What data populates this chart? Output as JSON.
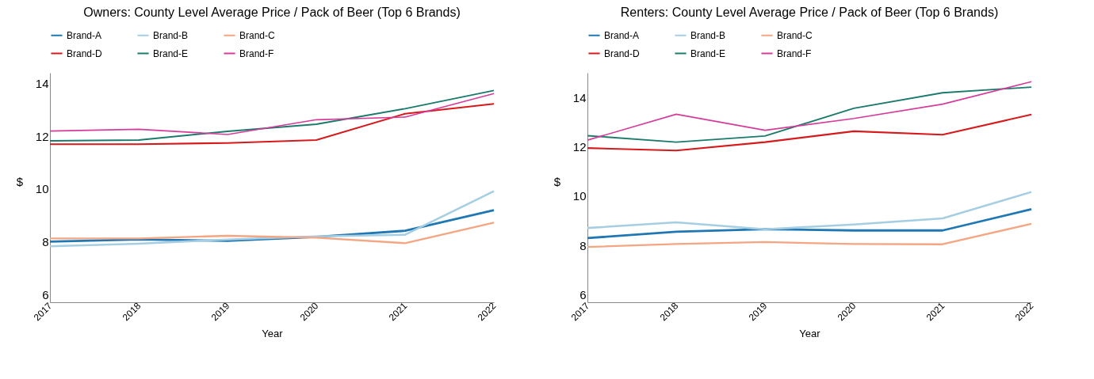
{
  "chart_data": [
    {
      "type": "line",
      "title": "Owners: County Level Average Price / Pack of Beer (Top 6 Brands)",
      "xlabel": "Year",
      "ylabel": "$",
      "categories": [
        "2017",
        "2018",
        "2019",
        "2020",
        "2021",
        "2022"
      ],
      "ylim": [
        5.7,
        14.4
      ],
      "yticks": [
        6,
        8,
        10,
        12,
        14
      ],
      "grid": false,
      "legend": "top left",
      "series": [
        {
          "name": "Brand-A",
          "color": "#1f78b4",
          "values": [
            8.0,
            8.08,
            8.03,
            8.18,
            8.41,
            9.19
          ]
        },
        {
          "name": "Brand-B",
          "color": "#a6cee3",
          "values": [
            7.82,
            7.92,
            8.08,
            8.2,
            8.26,
            9.91
          ]
        },
        {
          "name": "Brand-C",
          "color": "#f4a582",
          "values": [
            8.12,
            8.12,
            8.22,
            8.15,
            7.94,
            8.72
          ]
        },
        {
          "name": "Brand-D",
          "color": "#d7191c",
          "values": [
            11.69,
            11.69,
            11.74,
            11.85,
            12.85,
            13.22
          ]
        },
        {
          "name": "Brand-E",
          "color": "#1b7a6b",
          "values": [
            11.82,
            11.85,
            12.18,
            12.45,
            13.04,
            13.73
          ]
        },
        {
          "name": "Brand-F",
          "color": "#d63b9a",
          "values": [
            12.19,
            12.26,
            12.06,
            12.62,
            12.72,
            13.61
          ]
        }
      ]
    },
    {
      "type": "line",
      "title": "Renters: County Level Average Price / Pack of Beer (Top 6 Brands)",
      "xlabel": "Year",
      "ylabel": "$",
      "categories": [
        "2017",
        "2018",
        "2019",
        "2020",
        "2021",
        "2022"
      ],
      "ylim": [
        5.7,
        15
      ],
      "yticks": [
        6,
        8,
        10,
        12,
        14
      ],
      "grid": false,
      "legend": "top left",
      "series": [
        {
          "name": "Brand-A",
          "color": "#1f78b4",
          "values": [
            8.3,
            8.56,
            8.66,
            8.61,
            8.61,
            9.47
          ]
        },
        {
          "name": "Brand-B",
          "color": "#a6cee3",
          "values": [
            8.71,
            8.94,
            8.66,
            8.85,
            9.1,
            10.17
          ]
        },
        {
          "name": "Brand-C",
          "color": "#f4a582",
          "values": [
            7.94,
            8.06,
            8.14,
            8.06,
            8.05,
            8.88
          ]
        },
        {
          "name": "Brand-D",
          "color": "#d7191c",
          "values": [
            11.95,
            11.85,
            12.19,
            12.63,
            12.49,
            13.31
          ]
        },
        {
          "name": "Brand-E",
          "color": "#1b7a6b",
          "values": [
            12.45,
            12.19,
            12.44,
            13.56,
            14.19,
            14.42
          ]
        },
        {
          "name": "Brand-F",
          "color": "#d63b9a",
          "values": [
            12.27,
            13.32,
            12.67,
            13.15,
            13.73,
            14.64
          ]
        }
      ]
    }
  ]
}
